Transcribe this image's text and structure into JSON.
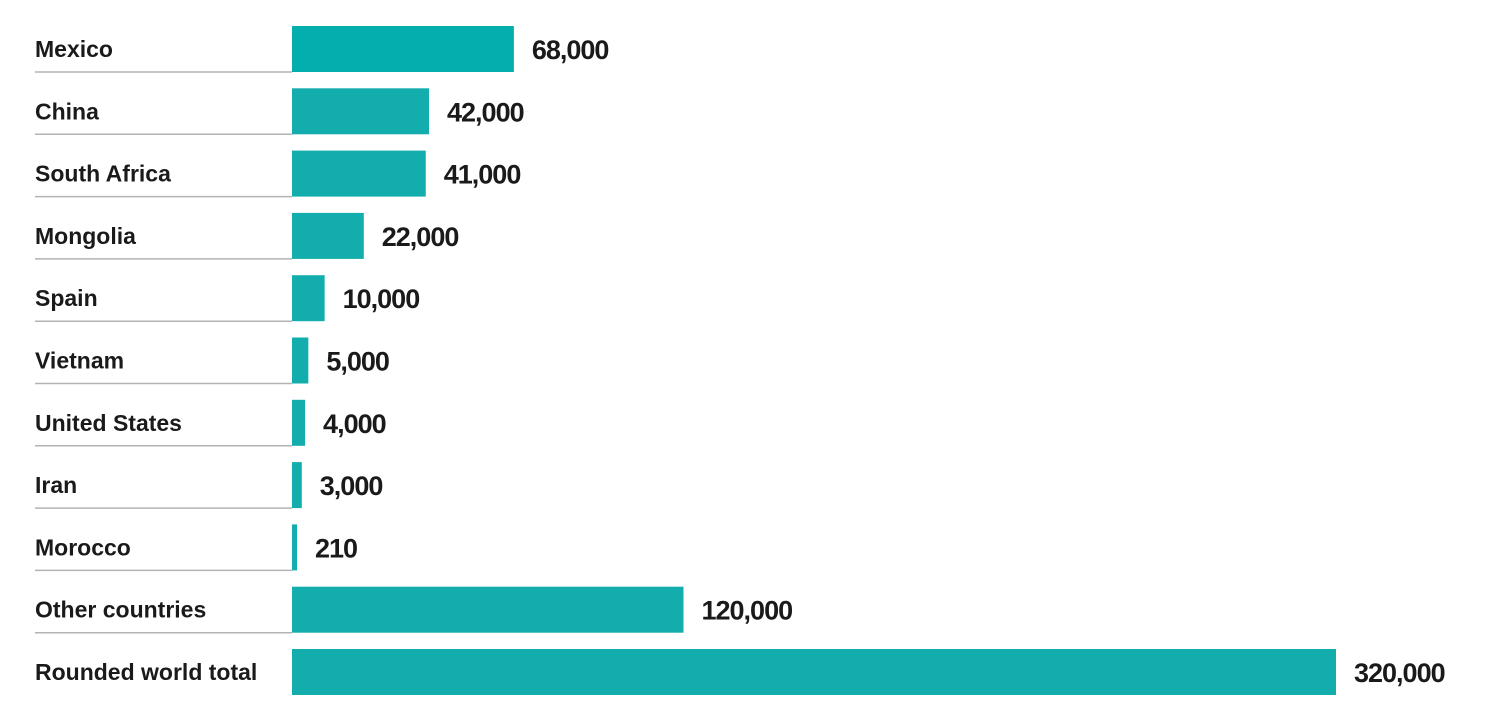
{
  "chart_data": {
    "type": "bar",
    "orientation": "horizontal",
    "title": "",
    "xlabel": "",
    "ylabel": "",
    "categories": [
      "Mexico",
      "China",
      "South Africa",
      "Mongolia",
      "Spain",
      "Vietnam",
      "United States",
      "Iran",
      "Morocco",
      "Other countries",
      "Rounded world total"
    ],
    "values": [
      68000,
      42000,
      41000,
      22000,
      10000,
      5000,
      4000,
      3000,
      210,
      120000,
      320000
    ],
    "value_labels": [
      "68,000",
      "42,000",
      "41,000",
      "22,000",
      "10,000",
      "5,000",
      "4,000",
      "3,000",
      "210",
      "120,000",
      "320,000"
    ],
    "xlim": [
      0,
      320000
    ],
    "grid": false,
    "legend": "none",
    "colors": {
      "highlight_bar": "#03aeae",
      "bar": "#13adad",
      "text": "#1a1a1a",
      "row_rule": "#b3b3b3"
    }
  }
}
